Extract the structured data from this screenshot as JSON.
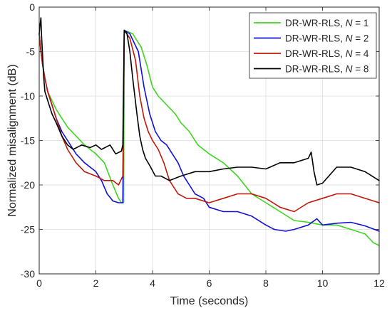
{
  "chart_data": {
    "type": "line",
    "title": "",
    "xlabel": "Time (seconds)",
    "ylabel": "Normalized misalignment (dB)",
    "xlim": [
      0,
      12
    ],
    "ylim": [
      -30,
      0
    ],
    "xticks": [
      0,
      2,
      4,
      6,
      8,
      10,
      12
    ],
    "yticks": [
      0,
      -5,
      -10,
      -15,
      -20,
      -25,
      -30
    ],
    "xtick_labels": [
      "0",
      "2",
      "4",
      "6",
      "8",
      "10",
      "12"
    ],
    "ytick_labels": [
      "0",
      "-5",
      "-10",
      "-15",
      "-20",
      "-25",
      "-30"
    ],
    "grid": true,
    "legend_position": "top-right",
    "series": [
      {
        "name_prefix": "DR-WR-RLS, ",
        "name_var": "N",
        "name_suffix": " = 1",
        "color": "#3cd61e",
        "x": [
          0,
          0.06,
          0.12,
          0.2,
          0.3,
          0.45,
          0.6,
          0.8,
          1.0,
          1.3,
          1.6,
          2.0,
          2.3,
          2.6,
          2.8,
          2.9,
          2.98,
          3.0,
          3.3,
          3.6,
          3.8,
          4.0,
          4.2,
          4.5,
          4.8,
          5.0,
          5.3,
          5.6,
          6.0,
          6.5,
          7.0,
          7.5,
          8.0,
          8.5,
          9.0,
          9.5,
          10.0,
          10.5,
          11.0,
          11.5,
          11.8,
          12.0
        ],
        "y": [
          -3,
          -5,
          -6.5,
          -8,
          -9.5,
          -10.5,
          -11.5,
          -12.5,
          -13.5,
          -14.5,
          -15.5,
          -16.5,
          -17.5,
          -20,
          -21.5,
          -22,
          -22,
          -2.6,
          -3,
          -4.5,
          -6.5,
          -9,
          -10,
          -11,
          -12,
          -13,
          -14,
          -15.5,
          -16.5,
          -17.5,
          -19,
          -21,
          -22,
          -23,
          -24,
          -24.2,
          -24.5,
          -24.5,
          -25,
          -25.5,
          -26.5,
          -26.8
        ]
      },
      {
        "name_prefix": "DR-WR-RLS, ",
        "name_var": "N",
        "name_suffix": " = 2",
        "color": "#1010d8",
        "x": [
          0,
          0.06,
          0.12,
          0.2,
          0.3,
          0.45,
          0.6,
          0.8,
          1.0,
          1.3,
          1.6,
          2.0,
          2.2,
          2.4,
          2.6,
          2.8,
          2.95,
          3.0,
          3.2,
          3.5,
          3.7,
          3.9,
          4.1,
          4.3,
          4.5,
          4.7,
          4.9,
          5.1,
          5.3,
          5.5,
          5.8,
          6.0,
          6.5,
          7.0,
          7.5,
          8.0,
          8.3,
          8.7,
          9.0,
          9.5,
          9.8,
          10.0,
          10.5,
          11.0,
          11.5,
          12.0
        ],
        "y": [
          -3,
          -5,
          -6.5,
          -8,
          -9.5,
          -11,
          -12.5,
          -14,
          -15,
          -16.5,
          -17.5,
          -18.5,
          -19.5,
          -21,
          -21.8,
          -22,
          -22,
          -2.6,
          -3,
          -5,
          -9,
          -12,
          -14,
          -15,
          -15.5,
          -16.5,
          -17.5,
          -19,
          -20,
          -21,
          -21.5,
          -22.5,
          -23,
          -23,
          -23.5,
          -24.5,
          -25,
          -25.2,
          -25,
          -24.5,
          -23.8,
          -24.5,
          -24.3,
          -24.2,
          -24.6,
          -25.2
        ]
      },
      {
        "name_prefix": "DR-WR-RLS, ",
        "name_var": "N",
        "name_suffix": " = 4",
        "color": "#c0180a",
        "x": [
          0,
          0.06,
          0.12,
          0.2,
          0.3,
          0.45,
          0.6,
          0.8,
          1.0,
          1.3,
          1.6,
          2.0,
          2.3,
          2.6,
          2.8,
          2.95,
          3.0,
          3.2,
          3.4,
          3.55,
          3.7,
          3.85,
          4.0,
          4.2,
          4.4,
          4.6,
          4.9,
          5.2,
          5.5,
          6.0,
          6.5,
          7.0,
          7.5,
          8.0,
          8.5,
          9.0,
          9.5,
          10.0,
          10.5,
          11.0,
          11.5,
          12.0
        ],
        "y": [
          -3,
          -5,
          -6.5,
          -8,
          -9.5,
          -11,
          -12.5,
          -14.5,
          -16,
          -17.5,
          -18.5,
          -19,
          -19.5,
          -19.5,
          -20,
          -19,
          -2.6,
          -3.5,
          -6,
          -10,
          -12.5,
          -14,
          -15,
          -16,
          -17.5,
          -19.5,
          -21,
          -21.5,
          -21.5,
          -22,
          -21.5,
          -21,
          -21,
          -21.5,
          -22.5,
          -23,
          -22,
          -21.5,
          -21,
          -21,
          -21.5,
          -22
        ]
      },
      {
        "name_prefix": "DR-WR-RLS, ",
        "name_var": "N",
        "name_suffix": " = 8",
        "color": "#000000",
        "x": [
          0,
          0.03,
          0.06,
          0.08,
          0.12,
          0.16,
          0.2,
          0.3,
          0.45,
          0.6,
          0.8,
          1.0,
          1.2,
          1.5,
          1.8,
          2.0,
          2.2,
          2.5,
          2.7,
          2.9,
          2.95,
          3.0,
          3.1,
          3.2,
          3.3,
          3.45,
          3.55,
          3.65,
          3.75,
          3.9,
          4.1,
          4.3,
          4.6,
          5.0,
          5.5,
          6.0,
          6.5,
          7.0,
          7.5,
          8.0,
          8.5,
          9.0,
          9.5,
          9.6,
          9.7,
          9.8,
          10.0,
          10.5,
          11.0,
          11.5,
          12.0
        ],
        "y": [
          -3,
          -2,
          -1.2,
          -3,
          -5.5,
          -8,
          -9.5,
          -10.5,
          -12,
          -13,
          -14.5,
          -15.5,
          -16,
          -15.5,
          -15.8,
          -15.5,
          -16,
          -15.5,
          -16.5,
          -16.2,
          -15.5,
          -2.6,
          -3,
          -5,
          -8,
          -12,
          -14.5,
          -16,
          -17,
          -17.8,
          -19,
          -19,
          -19.5,
          -19,
          -18.5,
          -18.5,
          -18.2,
          -18,
          -18,
          -18.2,
          -17.5,
          -17.5,
          -17,
          -16.3,
          -18.5,
          -20,
          -19.8,
          -18,
          -18,
          -18.5,
          -19.5
        ]
      }
    ]
  }
}
